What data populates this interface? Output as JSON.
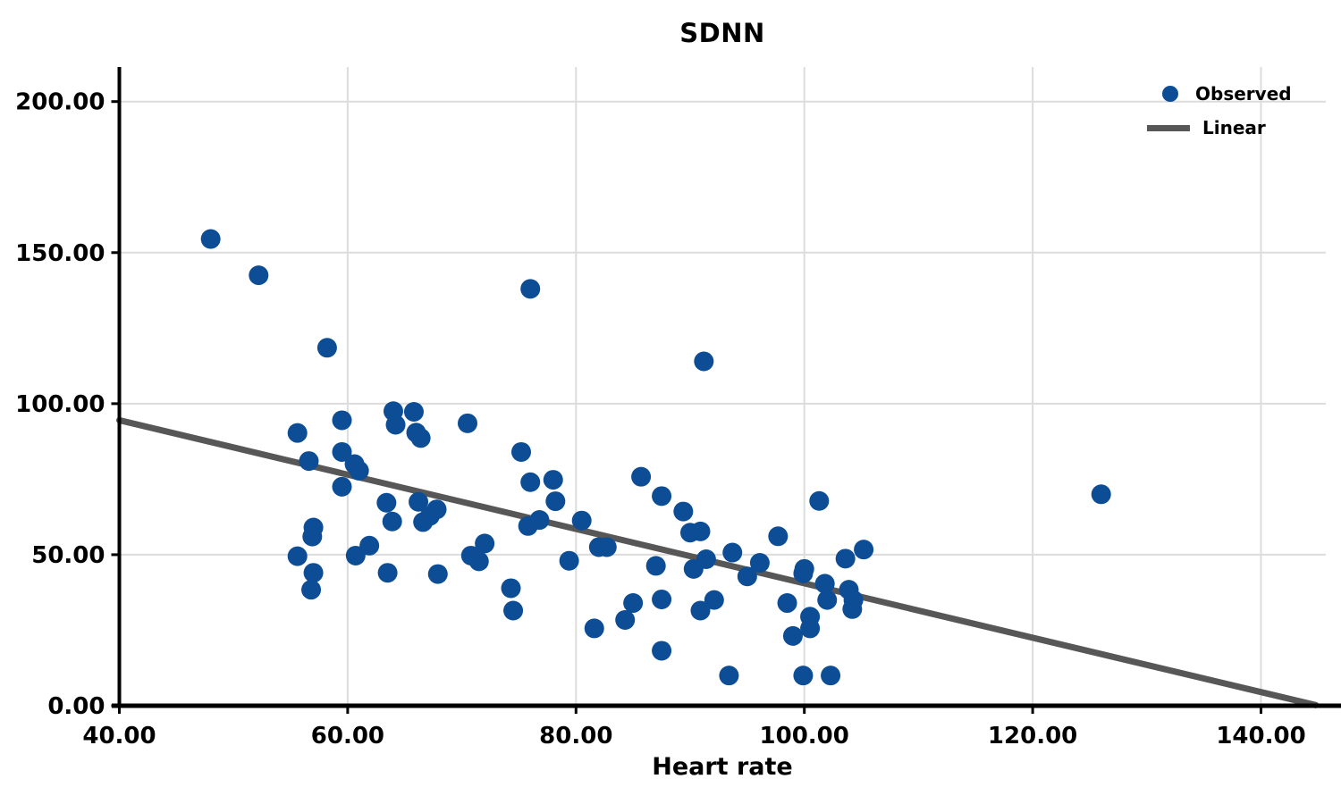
{
  "title": "SDNN",
  "colors": {
    "point": "#0d4d96",
    "line": "#575757",
    "grid": "#dcdcdc",
    "axis": "#000000",
    "background": "#ffffff",
    "text": "#000000"
  },
  "legend": {
    "observed_label": "Observed",
    "linear_label": "Linear"
  },
  "chart_data": {
    "type": "scatter",
    "title": "SDNN",
    "xlabel": "Heart rate",
    "ylabel": "",
    "grid": true,
    "legend_position": "top-right",
    "xlim": [
      40,
      145.2
    ],
    "ylim": [
      0,
      205
    ],
    "x_ticks": [
      40,
      60,
      80,
      100,
      120,
      140
    ],
    "x_tick_labels": [
      "40.00",
      "60.00",
      "80.00",
      "100.00",
      "120.00",
      "140.00"
    ],
    "y_ticks": [
      0,
      50,
      100,
      150,
      200
    ],
    "y_tick_labels": [
      "0.00",
      "50.00",
      "100.00",
      "150.00",
      "200.00"
    ],
    "series": [
      {
        "name": "Observed",
        "type": "scatter",
        "color": "#0d4d96",
        "points": [
          [
            48.0,
            154.5
          ],
          [
            52.2,
            142.5
          ],
          [
            58.2,
            118.5
          ],
          [
            76.0,
            138.0
          ],
          [
            91.2,
            114.0
          ],
          [
            126.0,
            70.0
          ],
          [
            55.6,
            90.3
          ],
          [
            56.6,
            81.0
          ],
          [
            59.5,
            94.5
          ],
          [
            59.5,
            84.0
          ],
          [
            60.6,
            80.0
          ],
          [
            61.0,
            77.8
          ],
          [
            59.5,
            72.5
          ],
          [
            64.0,
            97.5
          ],
          [
            64.2,
            93.0
          ],
          [
            65.8,
            97.3
          ],
          [
            66.0,
            90.4
          ],
          [
            66.4,
            88.6
          ],
          [
            70.5,
            93.5
          ],
          [
            63.4,
            67.2
          ],
          [
            63.9,
            61.0
          ],
          [
            66.2,
            67.5
          ],
          [
            66.6,
            60.8
          ],
          [
            67.2,
            62.8
          ],
          [
            67.8,
            65.0
          ],
          [
            57.0,
            59.0
          ],
          [
            56.9,
            56.0
          ],
          [
            55.6,
            49.5
          ],
          [
            60.7,
            49.7
          ],
          [
            61.9,
            53.0
          ],
          [
            57.0,
            44.0
          ],
          [
            63.5,
            44.0
          ],
          [
            67.9,
            43.6
          ],
          [
            56.8,
            38.4
          ],
          [
            75.2,
            84.0
          ],
          [
            76.0,
            74.0
          ],
          [
            78.0,
            74.8
          ],
          [
            85.7,
            75.8
          ],
          [
            78.2,
            67.7
          ],
          [
            75.8,
            59.5
          ],
          [
            76.8,
            61.5
          ],
          [
            80.5,
            61.3
          ],
          [
            72.0,
            53.7
          ],
          [
            70.8,
            49.7
          ],
          [
            71.5,
            47.8
          ],
          [
            79.4,
            48.0
          ],
          [
            82.0,
            52.5
          ],
          [
            82.7,
            52.5
          ],
          [
            87.0,
            46.3
          ],
          [
            87.5,
            69.4
          ],
          [
            89.4,
            64.3
          ],
          [
            90.0,
            57.3
          ],
          [
            90.9,
            57.7
          ],
          [
            90.3,
            45.3
          ],
          [
            74.3,
            38.9
          ],
          [
            74.5,
            31.5
          ],
          [
            85.0,
            34.0
          ],
          [
            84.3,
            28.4
          ],
          [
            81.6,
            25.6
          ],
          [
            87.5,
            35.2
          ],
          [
            90.9,
            31.5
          ],
          [
            87.5,
            18.2
          ],
          [
            101.3,
            67.8
          ],
          [
            97.7,
            56.1
          ],
          [
            91.4,
            48.5
          ],
          [
            93.7,
            50.7
          ],
          [
            96.1,
            47.3
          ],
          [
            103.6,
            48.7
          ],
          [
            105.2,
            51.7
          ],
          [
            100.0,
            45.3
          ],
          [
            95.0,
            42.8
          ],
          [
            99.9,
            43.8
          ],
          [
            101.8,
            40.4
          ],
          [
            98.5,
            34.0
          ],
          [
            92.1,
            35.0
          ],
          [
            102.0,
            35.0
          ],
          [
            103.9,
            38.4
          ],
          [
            104.3,
            35.0
          ],
          [
            104.2,
            32.0
          ],
          [
            100.5,
            29.5
          ],
          [
            100.5,
            25.6
          ],
          [
            99.0,
            23.1
          ],
          [
            93.4,
            10.0
          ],
          [
            99.9,
            10.0
          ],
          [
            102.3,
            10.0
          ]
        ]
      },
      {
        "name": "Linear",
        "type": "line",
        "color": "#575757",
        "points": [
          [
            40.0,
            94.5
          ],
          [
            144.8,
            0.2
          ]
        ]
      }
    ]
  }
}
